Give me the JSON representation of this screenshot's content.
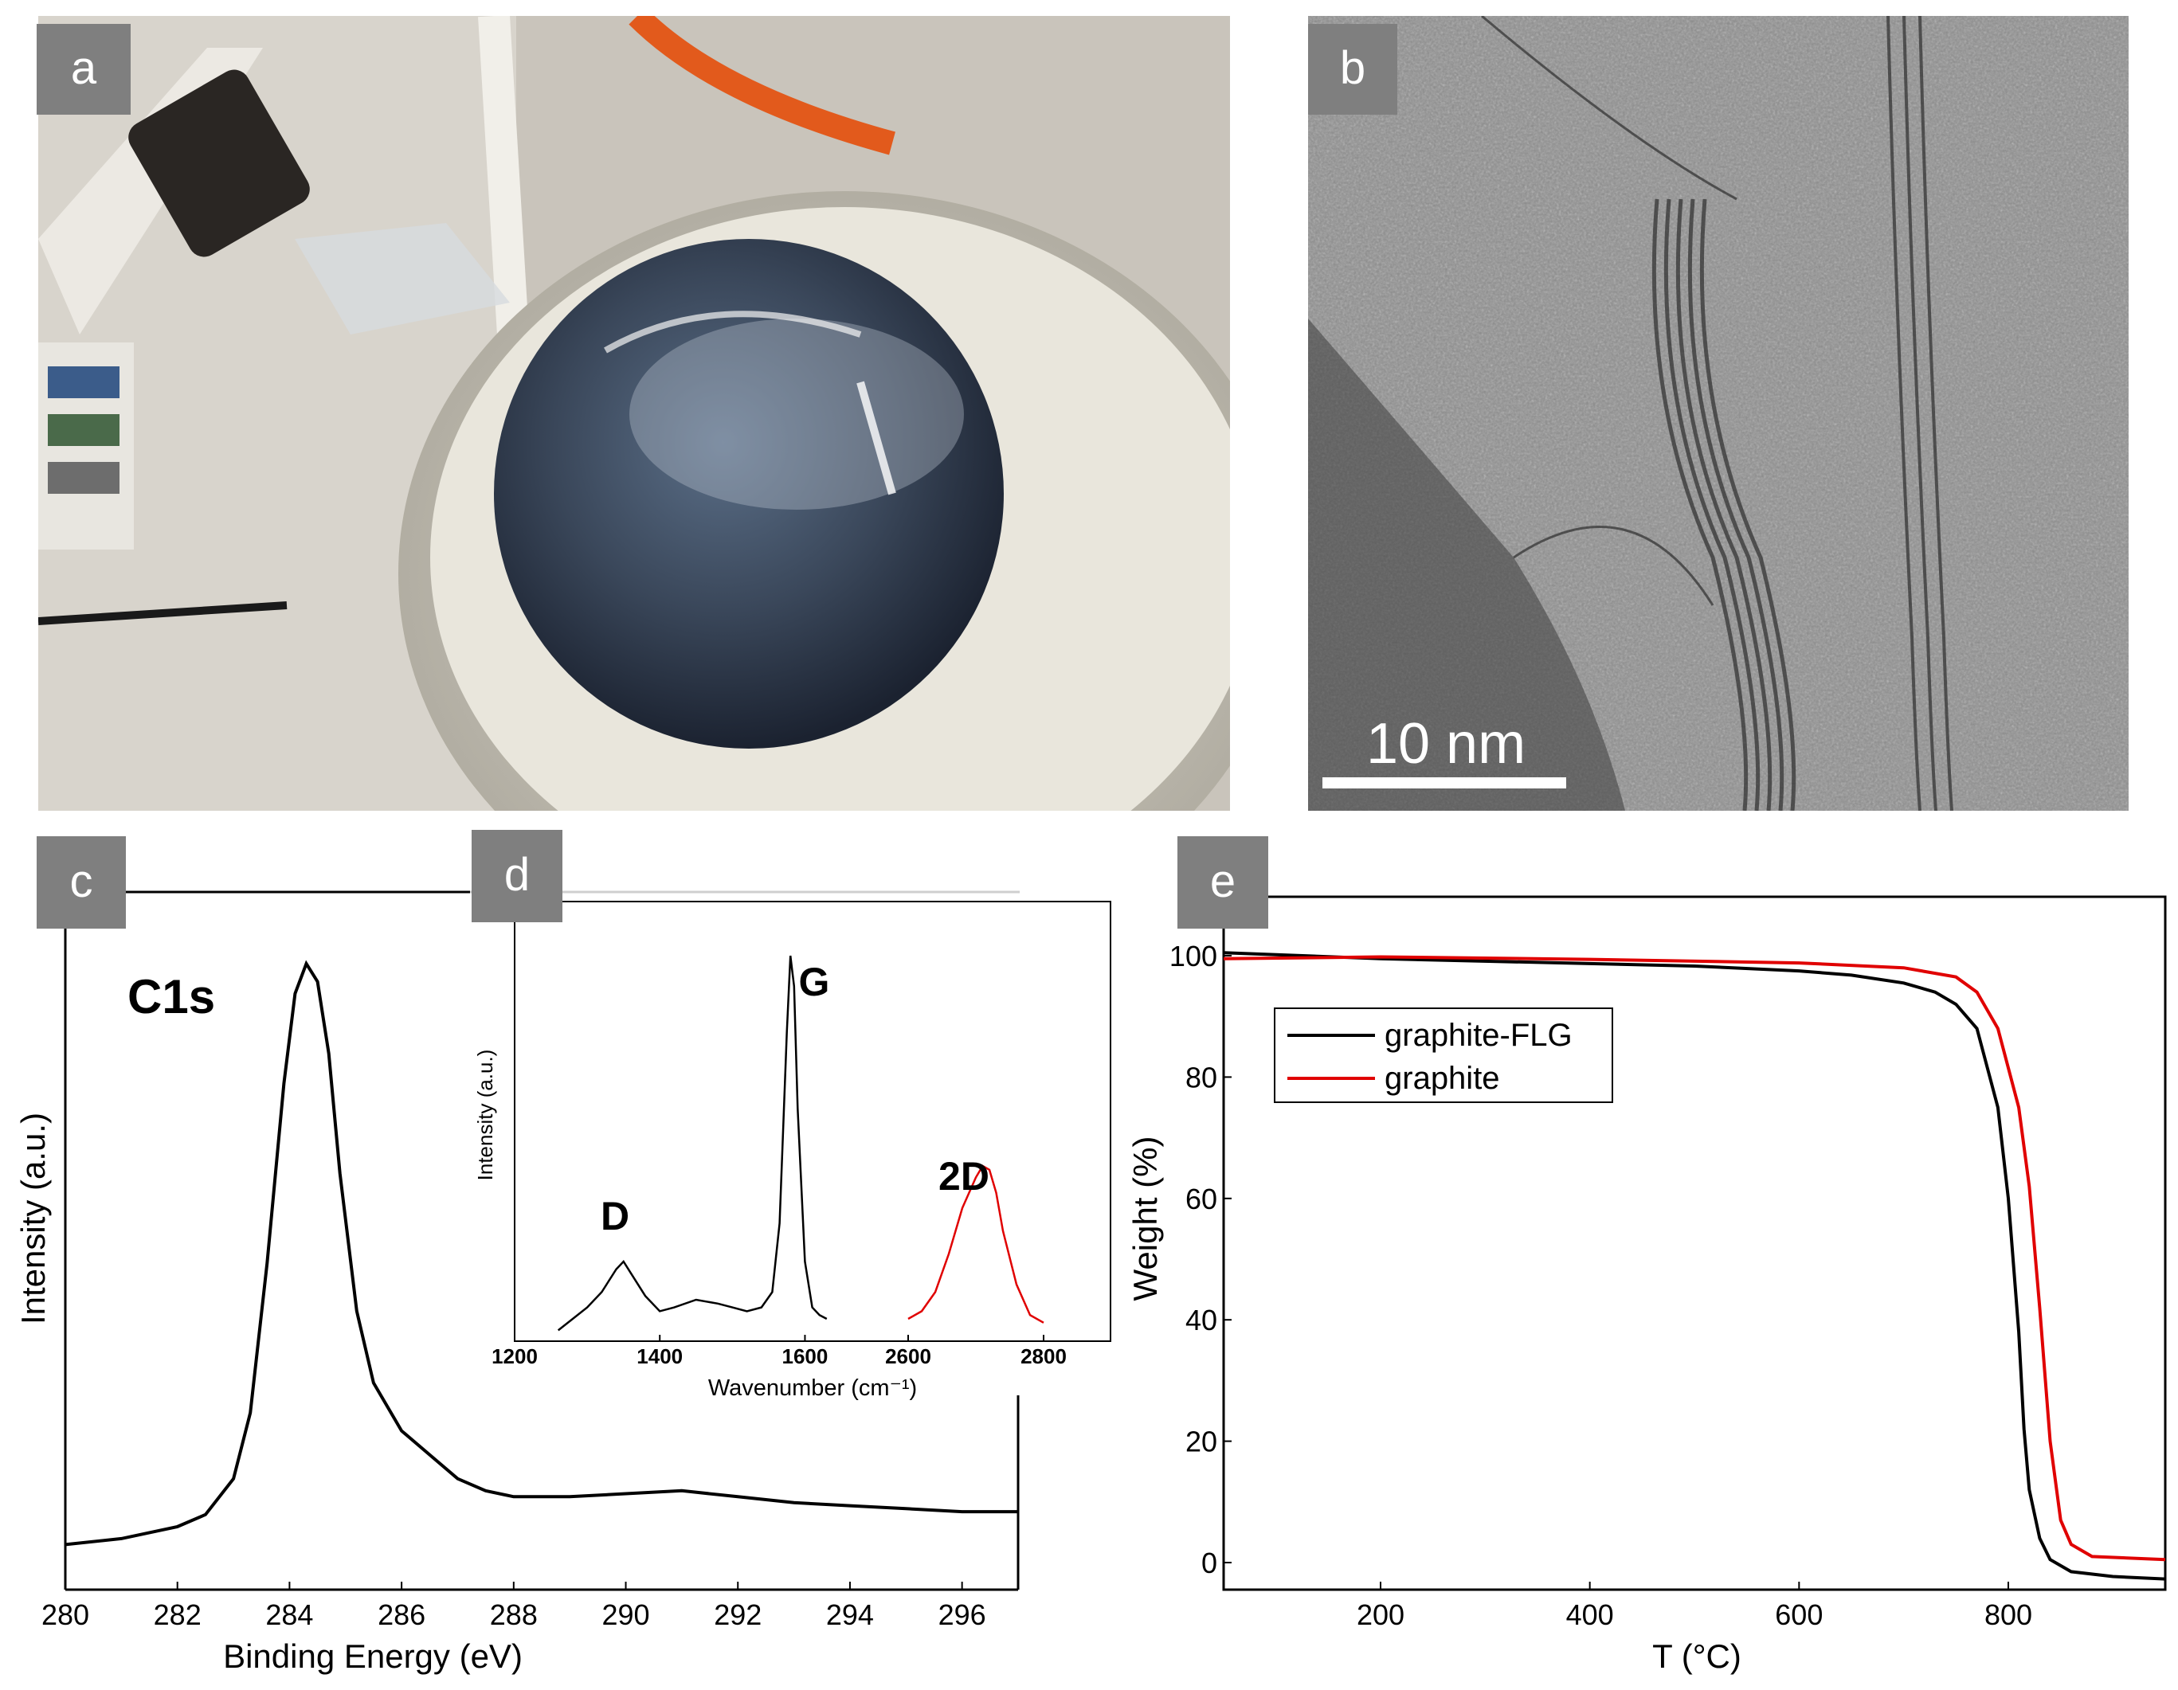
{
  "panels": {
    "a": {
      "label": "a"
    },
    "b": {
      "label": "b",
      "scale_bar": "10 nm"
    },
    "c": {
      "label": "c"
    },
    "d": {
      "label": "d"
    },
    "e": {
      "label": "e"
    }
  },
  "colors": {
    "black": "#000000",
    "red": "#e00000",
    "label_bg": "#7f7f7f"
  },
  "chart_data": [
    {
      "panel": "c",
      "type": "line",
      "title": "",
      "xlabel": "Binding Energy (eV)",
      "ylabel": "Intensity (a.u.)",
      "annotation": "C1s",
      "xlim": [
        280,
        297
      ],
      "xticks": [
        280,
        282,
        284,
        286,
        288,
        290,
        292,
        294,
        296
      ],
      "series": [
        {
          "name": "",
          "color": "#000000",
          "x": [
            280,
            281,
            282,
            282.5,
            283,
            283.3,
            283.6,
            283.9,
            284.1,
            284.3,
            284.5,
            284.7,
            284.9,
            285.2,
            285.5,
            286,
            286.5,
            287,
            287.5,
            288,
            289,
            290,
            291,
            292,
            293,
            294,
            295,
            296,
            297
          ],
          "y": [
            3,
            4,
            6,
            8,
            14,
            25,
            50,
            80,
            95,
            100,
            97,
            85,
            65,
            42,
            30,
            22,
            18,
            14,
            12,
            11,
            11,
            11.5,
            12,
            11,
            10,
            9.5,
            9,
            8.5,
            8.5
          ]
        }
      ]
    },
    {
      "panel": "d",
      "type": "line",
      "title": "",
      "xlabel": "Wavenumber (cm⁻¹)",
      "ylabel": "Intensity (a.u.)",
      "xticks": [
        1200,
        1400,
        1600,
        2600,
        2800
      ],
      "annotations": [
        "D",
        "G",
        "2D"
      ],
      "series": [
        {
          "name": "",
          "color": "#000000",
          "x": [
            1260,
            1280,
            1300,
            1320,
            1340,
            1350,
            1360,
            1380,
            1400,
            1420,
            1450,
            1480,
            1500,
            1520,
            1540,
            1555,
            1565,
            1575,
            1580,
            1585,
            1590,
            1600,
            1610,
            1620,
            1630
          ],
          "y": [
            2,
            5,
            8,
            12,
            18,
            20,
            17,
            11,
            7,
            8,
            10,
            9,
            8,
            7,
            8,
            12,
            30,
            80,
            100,
            92,
            60,
            20,
            8,
            6,
            5
          ]
        },
        {
          "name": "",
          "color": "#e00000",
          "x": [
            2600,
            2620,
            2640,
            2660,
            2680,
            2700,
            2710,
            2720,
            2730,
            2740,
            2760,
            2780,
            2800
          ],
          "y": [
            5,
            7,
            12,
            22,
            34,
            42,
            45,
            44,
            38,
            28,
            14,
            6,
            4
          ]
        }
      ]
    },
    {
      "panel": "e",
      "type": "line",
      "title": "",
      "xlabel": "T (°C)",
      "ylabel": "Weight (%)",
      "xlim": [
        50,
        950
      ],
      "ylim": [
        -3,
        102
      ],
      "xticks": [
        200,
        400,
        600,
        800
      ],
      "yticks": [
        0,
        20,
        40,
        60,
        80,
        100
      ],
      "legend": "top-left",
      "series": [
        {
          "name": "graphite-FLG",
          "color": "#000000",
          "x": [
            50,
            200,
            400,
            500,
            600,
            650,
            700,
            730,
            750,
            770,
            790,
            800,
            810,
            815,
            820,
            830,
            840,
            860,
            900,
            950
          ],
          "y": [
            100.5,
            99.5,
            98.7,
            98.3,
            97.5,
            96.8,
            95.5,
            94,
            92,
            88,
            75,
            60,
            38,
            22,
            12,
            4,
            0.5,
            -1.5,
            -2.3,
            -2.7
          ]
        },
        {
          "name": "graphite",
          "color": "#e00000",
          "x": [
            50,
            200,
            400,
            600,
            700,
            750,
            770,
            790,
            810,
            820,
            830,
            840,
            850,
            860,
            880,
            950
          ],
          "y": [
            99.5,
            99.8,
            99.4,
            98.8,
            98,
            96.5,
            94,
            88,
            75,
            62,
            42,
            20,
            7,
            3,
            1,
            0.5
          ]
        }
      ]
    }
  ]
}
